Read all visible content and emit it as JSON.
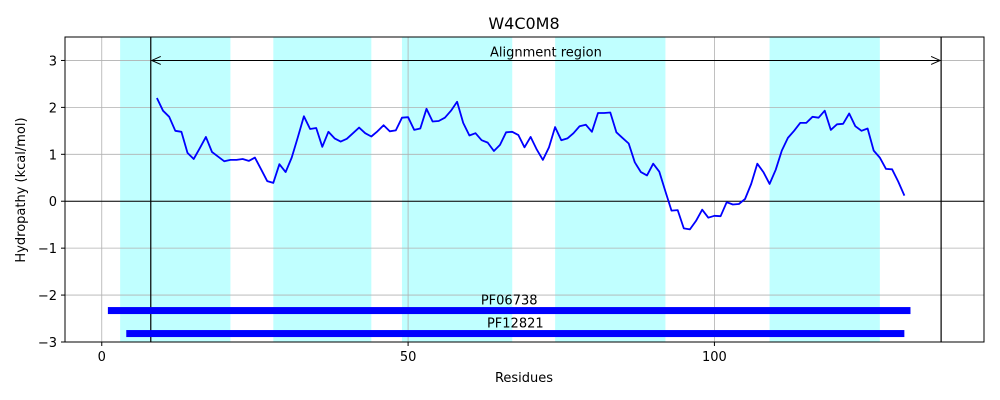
{
  "chart_data": {
    "type": "line",
    "title": "W4C0M8",
    "xlabel": "Residues",
    "ylabel": "Hydropathy (kcal/mol)",
    "xlim": [
      -6,
      144
    ],
    "ylim": [
      -3,
      3.5
    ],
    "xticks": [
      0,
      50,
      100
    ],
    "yticks": [
      -3,
      -2,
      -1,
      0,
      1,
      2,
      3
    ],
    "grid": true,
    "colors": {
      "line": "#0000ff",
      "band": "#c0ffff",
      "domain": "#0000ff",
      "grid": "#b0b0b0",
      "axis": "#000000"
    },
    "shaded_regions": [
      [
        3,
        21
      ],
      [
        28,
        44
      ],
      [
        49,
        67
      ],
      [
        74,
        92
      ],
      [
        109,
        127
      ]
    ],
    "alignment_region": {
      "label": "Alignment region",
      "start": 8,
      "end": 137,
      "y": 3.0
    },
    "domains": [
      {
        "name": "PF06738",
        "start": 1,
        "end": 132,
        "y": -2.33
      },
      {
        "name": "PF12821",
        "start": 4,
        "end": 131,
        "y": -2.82
      }
    ],
    "series": [
      {
        "x": [
          9,
          10,
          11,
          12,
          13,
          14,
          15,
          16,
          17,
          18,
          19,
          20,
          21,
          22,
          23,
          24,
          25,
          26,
          27,
          28,
          29,
          30,
          31,
          32,
          33,
          34,
          35,
          36,
          37,
          38,
          39,
          40,
          41,
          42,
          43,
          44,
          45,
          46,
          47,
          48,
          49,
          50,
          51,
          52,
          53,
          54,
          55,
          56,
          57,
          58,
          59,
          60,
          61,
          62,
          63,
          64,
          65,
          66,
          67,
          68,
          69,
          70,
          71,
          72,
          73,
          74,
          75,
          76,
          77,
          78,
          79,
          80,
          81,
          82,
          83,
          84,
          85,
          86,
          87,
          88,
          89,
          90,
          91,
          92,
          93,
          94,
          95,
          96,
          97,
          98,
          99,
          100,
          101,
          102,
          103,
          104,
          105,
          106,
          107,
          108,
          109,
          110,
          111,
          112,
          113,
          114,
          115,
          116,
          117,
          118,
          119,
          120,
          121,
          122,
          123,
          124,
          125,
          126,
          127,
          128,
          129,
          130,
          131
        ],
        "y": [
          2.2,
          1.93,
          1.8,
          1.5,
          1.48,
          1.03,
          0.9,
          1.13,
          1.37,
          1.05,
          0.95,
          0.85,
          0.88,
          0.88,
          0.9,
          0.86,
          0.93,
          0.68,
          0.43,
          0.39,
          0.79,
          0.62,
          0.93,
          1.36,
          1.81,
          1.54,
          1.56,
          1.16,
          1.48,
          1.34,
          1.27,
          1.33,
          1.45,
          1.57,
          1.45,
          1.38,
          1.49,
          1.62,
          1.49,
          1.51,
          1.78,
          1.79,
          1.52,
          1.55,
          1.97,
          1.7,
          1.71,
          1.78,
          1.93,
          2.12,
          1.67,
          1.4,
          1.45,
          1.3,
          1.25,
          1.07,
          1.2,
          1.47,
          1.48,
          1.41,
          1.15,
          1.37,
          1.1,
          0.88,
          1.15,
          1.58,
          1.3,
          1.34,
          1.45,
          1.6,
          1.63,
          1.48,
          1.88,
          1.88,
          1.89,
          1.47,
          1.35,
          1.23,
          0.83,
          0.62,
          0.55,
          0.8,
          0.63,
          0.21,
          -0.2,
          -0.19,
          -0.58,
          -0.6,
          -0.42,
          -0.18,
          -0.35,
          -0.31,
          -0.32,
          -0.02,
          -0.07,
          -0.06,
          0.05,
          0.37,
          0.8,
          0.62,
          0.37,
          0.67,
          1.08,
          1.35,
          1.5,
          1.67,
          1.67,
          1.8,
          1.78,
          1.93,
          1.52,
          1.64,
          1.65,
          1.87,
          1.6,
          1.5,
          1.55,
          1.08,
          0.93,
          0.69,
          0.68,
          0.42,
          0.12
        ]
      }
    ]
  }
}
